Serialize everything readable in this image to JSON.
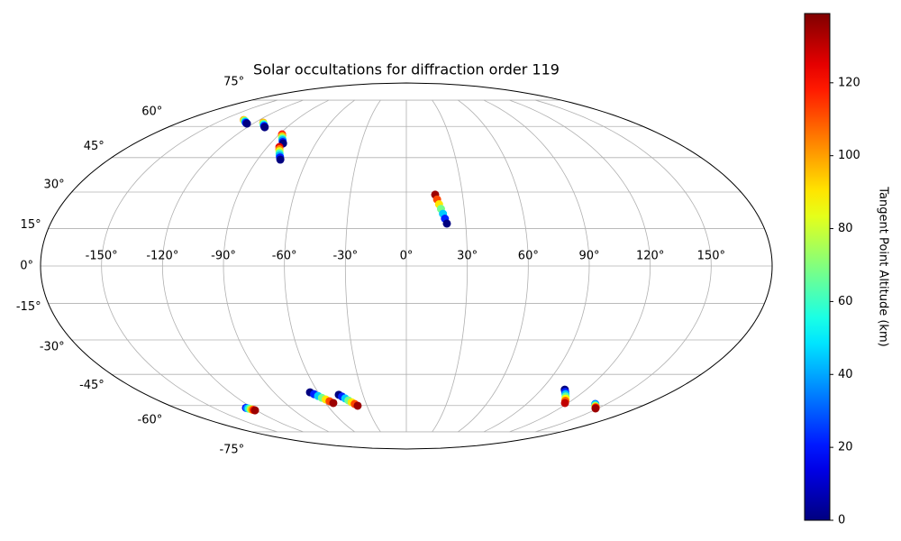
{
  "chart_data": {
    "type": "scatter",
    "projection": "mollweide",
    "title": "Solar occultations for diffraction order 119",
    "colorbar_label": "Tangent Point Altitude (km)",
    "colormap": "jet",
    "clim": [
      0,
      139
    ],
    "cticks": [
      0,
      20,
      40,
      60,
      80,
      100,
      120
    ],
    "grid": true,
    "longitude_cap": 75,
    "xlim": [
      -180,
      180
    ],
    "ylim": [
      -90,
      90
    ],
    "xticks": [
      {
        "value": -150,
        "label": "-150°"
      },
      {
        "value": -120,
        "label": "-120°"
      },
      {
        "value": -90,
        "label": "-90°"
      },
      {
        "value": -60,
        "label": "-60°"
      },
      {
        "value": -30,
        "label": "-30°"
      },
      {
        "value": 0,
        "label": "0°"
      },
      {
        "value": 30,
        "label": "30°"
      },
      {
        "value": 60,
        "label": "60°"
      },
      {
        "value": 90,
        "label": "90°"
      },
      {
        "value": 120,
        "label": "120°"
      },
      {
        "value": 150,
        "label": "150°"
      }
    ],
    "yticks": [
      {
        "value": -75,
        "label": "-75°"
      },
      {
        "value": -60,
        "label": "-60°"
      },
      {
        "value": -45,
        "label": "-45°"
      },
      {
        "value": -30,
        "label": "-30°"
      },
      {
        "value": -15,
        "label": "-15°"
      },
      {
        "value": 0,
        "label": "0°"
      },
      {
        "value": 15,
        "label": "15°"
      },
      {
        "value": 30,
        "label": "30°"
      },
      {
        "value": 45,
        "label": "45°"
      },
      {
        "value": 60,
        "label": "60°"
      },
      {
        "value": 75,
        "label": "75°"
      }
    ],
    "tracks": [
      {
        "lon": [
          15.4,
          16.25,
          17.1,
          17.95,
          18.8,
          19.65,
          20.5
        ],
        "lat": [
          28.9,
          26.9,
          24.9,
          23.0,
          21.0,
          19.0,
          17.0
        ],
        "altitude": [
          135,
          112,
          90,
          68,
          45,
          22,
          0
        ]
      },
      {
        "lon": [
          -65.5,
          -63.6,
          -61.7,
          -59.9,
          -58.0,
          -56.1,
          -54.2
        ],
        "lat": [
          -53.4,
          -54.3,
          -55.2,
          -56.1,
          -56.9,
          -57.8,
          -58.7
        ],
        "altitude": [
          0,
          22,
          45,
          68,
          90,
          112,
          135
        ]
      },
      {
        "lon": [
          -46.8,
          -45.2,
          -43.6,
          -42.0,
          -40.3,
          -38.7,
          -37.1
        ],
        "lat": [
          -54.6,
          -55.5,
          -56.4,
          -57.4,
          -58.3,
          -59.2,
          -60.1
        ],
        "altitude": [
          0,
          22,
          45,
          68,
          90,
          112,
          135
        ]
      },
      {
        "lon": [
          105.7,
          107.7,
          109.7,
          111.7,
          113.7,
          115.7,
          117.7
        ],
        "lat": [
          -52.1,
          -53.2,
          -54.3,
          -55.4,
          -56.5,
          -57.6,
          -58.7
        ],
        "altitude": [
          0,
          22,
          43,
          65,
          87,
          108,
          130
        ]
      },
      {
        "lon": [
          141.5,
          142.6,
          143.7,
          144.9,
          146.0,
          147.1,
          148.2
        ],
        "lat": [
          -59.2,
          -59.6,
          -60.0,
          -60.4,
          -60.7,
          -61.1,
          -61.5
        ],
        "altitude": [
          30,
          48,
          65,
          82,
          100,
          118,
          135
        ]
      },
      {
        "lon": [
          -124.9,
          -124.3,
          -123.6,
          -123.0,
          -122.4,
          -121.7,
          -121.1
        ],
        "lat": [
          -61.2,
          -61.4,
          -61.6,
          -61.9,
          -62.1,
          -62.3,
          -62.5
        ],
        "altitude": [
          20,
          39,
          58,
          78,
          97,
          116,
          135
        ]
      },
      {
        "lon": [
          -132.6,
          -131.3,
          -130.0,
          -128.8,
          -127.5,
          -126.2,
          -124.9
        ],
        "lat": [
          63.4,
          63.1,
          62.8,
          62.5,
          62.1,
          61.8,
          61.5
        ],
        "altitude": [
          100,
          83,
          67,
          50,
          33,
          17,
          0
        ]
      },
      {
        "lon": [
          -113.3,
          -112.2,
          -111.2,
          -110.1,
          -109.0,
          -108.0,
          -106.9
        ],
        "lat": [
          62.0,
          61.6,
          61.2,
          60.8,
          60.4,
          60.0,
          59.6
        ],
        "altitude": [
          100,
          83,
          67,
          50,
          33,
          17,
          0
        ]
      },
      {
        "lon": [
          -88.0,
          -86.9,
          -85.9,
          -84.8,
          -83.8,
          -82.7,
          -81.7
        ],
        "lat": [
          56.0,
          55.3,
          54.5,
          53.8,
          53.1,
          52.3,
          51.6
        ],
        "altitude": [
          120,
          100,
          80,
          60,
          40,
          20,
          0
        ]
      },
      {
        "lon": [
          -82.2,
          -81.2,
          -80.2,
          -79.2,
          -78.2,
          -77.2,
          -76.2
        ],
        "lat": [
          49.9,
          48.9,
          48.0,
          47.0,
          46.0,
          45.1,
          44.1
        ],
        "altitude": [
          125,
          104,
          83,
          62,
          42,
          21,
          0
        ]
      }
    ]
  }
}
